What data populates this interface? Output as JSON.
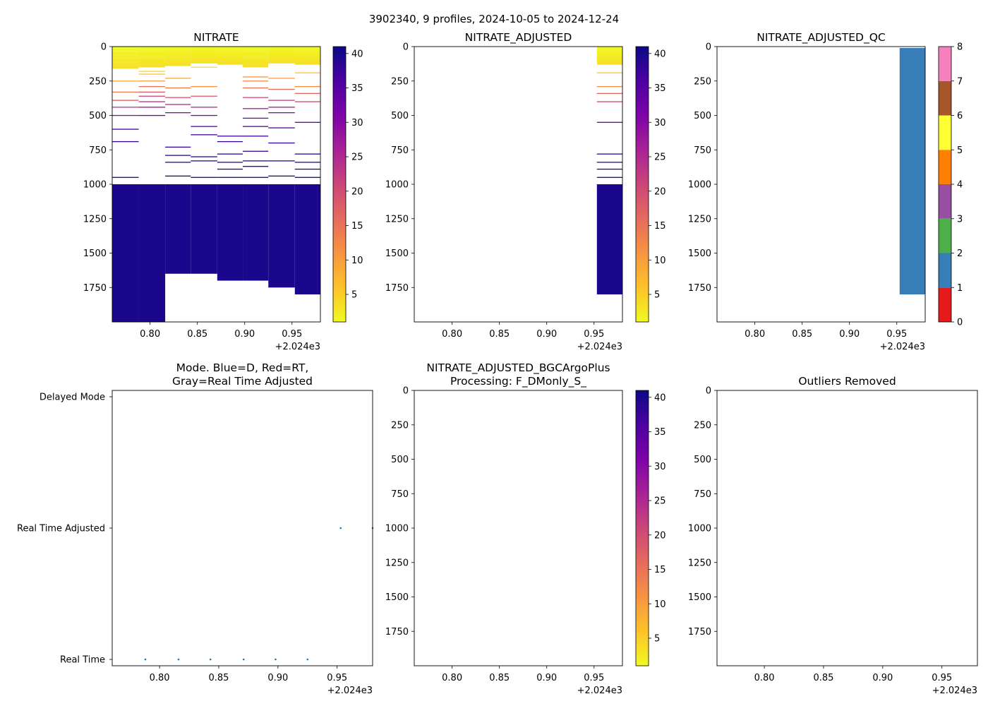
{
  "figure": {
    "suptitle": "3902340, 9 profiles, 2024-10-05 to 2024-12-24"
  },
  "colors": {
    "plasma_r": [
      "#f0f921",
      "#fdc328",
      "#f89441",
      "#e56b5d",
      "#cb4679",
      "#a82296",
      "#7e03a8",
      "#4c02a1",
      "#0d0887"
    ],
    "qc": [
      "#e41a1c",
      "#377eb8",
      "#4daf4a",
      "#984ea3",
      "#ff7f00",
      "#ffff33",
      "#a65628",
      "#f781bf",
      "#999999"
    ],
    "scatter": "#1f77b4"
  },
  "chart_data": [
    {
      "id": "nitrate",
      "type": "heatmap",
      "title": "NITRATE",
      "xlim": [
        2024.76,
        2024.98
      ],
      "ylim": [
        2000,
        0
      ],
      "xticks": [
        "0.80",
        "0.85",
        "0.90",
        "0.95"
      ],
      "xtick_values": [
        2024.8,
        2024.85,
        2024.9,
        2024.95
      ],
      "x_offset_label": "+2.024e3",
      "yticks": [
        "0",
        "250",
        "500",
        "750",
        "1000",
        "1250",
        "1500",
        "1750"
      ],
      "ytick_values": [
        0,
        250,
        500,
        750,
        1000,
        1250,
        1500,
        1750
      ],
      "colorbar": {
        "range": [
          1,
          41
        ],
        "ticks": [
          "5",
          "10",
          "15",
          "20",
          "25",
          "30",
          "35",
          "40"
        ],
        "tick_values": [
          5,
          10,
          15,
          20,
          25,
          30,
          35,
          40
        ]
      },
      "profiles": [
        {
          "x": [
            2024.76,
            2024.788
          ],
          "dense_top": [
            0,
            160
          ],
          "deep_start": 1000,
          "deep_end": 2000,
          "lines": [
            [
              250,
              8
            ],
            [
              330,
              14
            ],
            [
              390,
              18
            ],
            [
              440,
              23
            ],
            [
              500,
              30
            ],
            [
              600,
              37
            ],
            [
              690,
              38
            ],
            [
              950,
              40
            ]
          ]
        },
        {
          "x": [
            2024.788,
            2024.816
          ],
          "dense_top": [
            0,
            150
          ],
          "deep_start": 1000,
          "deep_end": 2000,
          "lines": [
            [
              180,
              4
            ],
            [
              200,
              6
            ],
            [
              250,
              10
            ],
            [
              290,
              15
            ],
            [
              330,
              18
            ],
            [
              360,
              21
            ],
            [
              400,
              24
            ],
            [
              440,
              28
            ],
            [
              500,
              33
            ]
          ]
        },
        {
          "x": [
            2024.816,
            2024.843
          ],
          "dense_top": [
            0,
            140
          ],
          "deep_start": 1000,
          "deep_end": 1650,
          "lines": [
            [
              230,
              9
            ],
            [
              300,
              14
            ],
            [
              370,
              19
            ],
            [
              420,
              24
            ],
            [
              480,
              30
            ],
            [
              730,
              38
            ],
            [
              790,
              39
            ],
            [
              840,
              39
            ],
            [
              940,
              40
            ]
          ]
        },
        {
          "x": [
            2024.843,
            2024.871
          ],
          "dense_top": [
            0,
            120
          ],
          "deep_start": 1000,
          "deep_end": 1650,
          "lines": [
            [
              150,
              3
            ],
            [
              290,
              11
            ],
            [
              360,
              18
            ],
            [
              440,
              25
            ],
            [
              500,
              31
            ],
            [
              580,
              35
            ],
            [
              640,
              37
            ],
            [
              800,
              39
            ],
            [
              830,
              39
            ],
            [
              950,
              40
            ]
          ]
        },
        {
          "x": [
            2024.871,
            2024.898
          ],
          "dense_top": [
            0,
            130
          ],
          "deep_start": 1000,
          "deep_end": 1700,
          "lines": [
            [
              650,
              37
            ],
            [
              690,
              38
            ],
            [
              780,
              39
            ],
            [
              840,
              39
            ],
            [
              890,
              40
            ],
            [
              950,
              40
            ]
          ]
        },
        {
          "x": [
            2024.898,
            2024.925
          ],
          "dense_top": [
            0,
            150
          ],
          "deep_start": 1000,
          "deep_end": 1700,
          "lines": [
            [
              220,
              11
            ],
            [
              250,
              12
            ],
            [
              300,
              15
            ],
            [
              370,
              20
            ],
            [
              450,
              27
            ],
            [
              520,
              32
            ],
            [
              580,
              35
            ],
            [
              650,
              37
            ],
            [
              760,
              38
            ],
            [
              830,
              39
            ],
            [
              870,
              40
            ],
            [
              950,
              40
            ]
          ]
        },
        {
          "x": [
            2024.925,
            2024.953
          ],
          "dense_top": [
            0,
            120
          ],
          "deep_start": 1000,
          "deep_end": 1750,
          "lines": [
            [
              230,
              10
            ],
            [
              310,
              16
            ],
            [
              390,
              22
            ],
            [
              440,
              27
            ],
            [
              480,
              30
            ],
            [
              590,
              35
            ],
            [
              700,
              38
            ],
            [
              830,
              39
            ],
            [
              940,
              40
            ]
          ]
        },
        {
          "x": [
            2024.953,
            2024.98
          ],
          "dense_top": [
            0,
            130
          ],
          "deep_start": 1000,
          "deep_end": 1800,
          "lines": [
            [
              190,
              6
            ],
            [
              290,
              12
            ],
            [
              340,
              17
            ],
            [
              400,
              21
            ],
            [
              550,
              34
            ],
            [
              780,
              39
            ],
            [
              840,
              39
            ],
            [
              890,
              40
            ],
            [
              950,
              40
            ]
          ]
        }
      ]
    },
    {
      "id": "nitrate_adjusted",
      "type": "heatmap",
      "title": "NITRATE_ADJUSTED",
      "xlim": [
        2024.76,
        2024.98
      ],
      "ylim": [
        2000,
        0
      ],
      "xticks": [
        "0.80",
        "0.85",
        "0.90",
        "0.95"
      ],
      "xtick_values": [
        2024.8,
        2024.85,
        2024.9,
        2024.95
      ],
      "x_offset_label": "+2.024e3",
      "yticks": [
        "0",
        "250",
        "500",
        "750",
        "1000",
        "1250",
        "1500",
        "1750"
      ],
      "ytick_values": [
        0,
        250,
        500,
        750,
        1000,
        1250,
        1500,
        1750
      ],
      "colorbar": {
        "range": [
          1,
          41
        ],
        "ticks": [
          "5",
          "10",
          "15",
          "20",
          "25",
          "30",
          "35",
          "40"
        ],
        "tick_values": [
          5,
          10,
          15,
          20,
          25,
          30,
          35,
          40
        ]
      },
      "profiles": [
        {
          "x": [
            2024.953,
            2024.98
          ],
          "dense_top": [
            0,
            130
          ],
          "deep_start": 1000,
          "deep_end": 1800,
          "lines": [
            [
              190,
              6
            ],
            [
              290,
              12
            ],
            [
              340,
              17
            ],
            [
              400,
              21
            ],
            [
              550,
              34
            ],
            [
              780,
              39
            ],
            [
              840,
              39
            ],
            [
              890,
              40
            ],
            [
              950,
              40
            ]
          ]
        }
      ]
    },
    {
      "id": "nitrate_adjusted_qc",
      "type": "heatmap",
      "title": "NITRATE_ADJUSTED_QC",
      "xlim": [
        2024.76,
        2024.98
      ],
      "ylim": [
        2000,
        0
      ],
      "xticks": [
        "0.80",
        "0.85",
        "0.90",
        "0.95"
      ],
      "xtick_values": [
        2024.8,
        2024.85,
        2024.9,
        2024.95
      ],
      "x_offset_label": "+2.024e3",
      "yticks": [
        "0",
        "250",
        "500",
        "750",
        "1000",
        "1250",
        "1500",
        "1750"
      ],
      "ytick_values": [
        0,
        250,
        500,
        750,
        1000,
        1250,
        1500,
        1750
      ],
      "colorbar": {
        "range": [
          0,
          8
        ],
        "ticks": [
          "0",
          "1",
          "2",
          "3",
          "4",
          "5",
          "6",
          "7",
          "8"
        ],
        "tick_values": [
          0,
          1,
          2,
          3,
          4,
          5,
          6,
          7,
          8
        ]
      },
      "blocks": [
        {
          "x": [
            2024.953,
            2024.98
          ],
          "y": [
            10,
            1800
          ],
          "qc": 1
        }
      ]
    },
    {
      "id": "mode",
      "type": "scatter",
      "title": "Mode. Blue=D, Red=RT,\nGray=Real Time Adjusted",
      "xlim": [
        2024.76,
        2024.98
      ],
      "xticks": [
        "0.80",
        "0.85",
        "0.90",
        "0.95"
      ],
      "xtick_values": [
        2024.8,
        2024.85,
        2024.9,
        2024.95
      ],
      "x_offset_label": "+2.024e3",
      "ycategories": [
        "Real Time",
        "Real Time Adjusted",
        "Delayed Mode"
      ],
      "points": [
        {
          "x": 2024.788,
          "y": 0
        },
        {
          "x": 2024.816,
          "y": 0
        },
        {
          "x": 2024.843,
          "y": 0
        },
        {
          "x": 2024.871,
          "y": 0
        },
        {
          "x": 2024.898,
          "y": 0
        },
        {
          "x": 2024.925,
          "y": 0
        },
        {
          "x": 2024.953,
          "y": 1
        },
        {
          "x": 2024.98,
          "y": 1
        }
      ]
    },
    {
      "id": "bgcargoplus",
      "type": "heatmap",
      "title": "NITRATE_ADJUSTED_BGCArgoPlus\nProcessing: F_DMonly_S_",
      "xlim": [
        2024.76,
        2024.98
      ],
      "ylim": [
        2000,
        0
      ],
      "xticks": [
        "0.80",
        "0.85",
        "0.90",
        "0.95"
      ],
      "xtick_values": [
        2024.8,
        2024.85,
        2024.9,
        2024.95
      ],
      "x_offset_label": "+2.024e3",
      "yticks": [
        "0",
        "250",
        "500",
        "750",
        "1000",
        "1250",
        "1500",
        "1750"
      ],
      "ytick_values": [
        0,
        250,
        500,
        750,
        1000,
        1250,
        1500,
        1750
      ],
      "colorbar": {
        "range": [
          1,
          41
        ],
        "ticks": [
          "5",
          "10",
          "15",
          "20",
          "25",
          "30",
          "35",
          "40"
        ],
        "tick_values": [
          5,
          10,
          15,
          20,
          25,
          30,
          35,
          40
        ]
      },
      "profiles": []
    },
    {
      "id": "outliers",
      "type": "heatmap",
      "title": "Outliers Removed",
      "xlim": [
        2024.76,
        2024.98
      ],
      "ylim": [
        2000,
        0
      ],
      "xticks": [
        "0.80",
        "0.85",
        "0.90",
        "0.95"
      ],
      "xtick_values": [
        2024.8,
        2024.85,
        2024.9,
        2024.95
      ],
      "x_offset_label": "+2.024e3",
      "yticks": [
        "0",
        "250",
        "500",
        "750",
        "1000",
        "1250",
        "1500",
        "1750"
      ],
      "ytick_values": [
        0,
        250,
        500,
        750,
        1000,
        1250,
        1500,
        1750
      ],
      "profiles": []
    }
  ]
}
